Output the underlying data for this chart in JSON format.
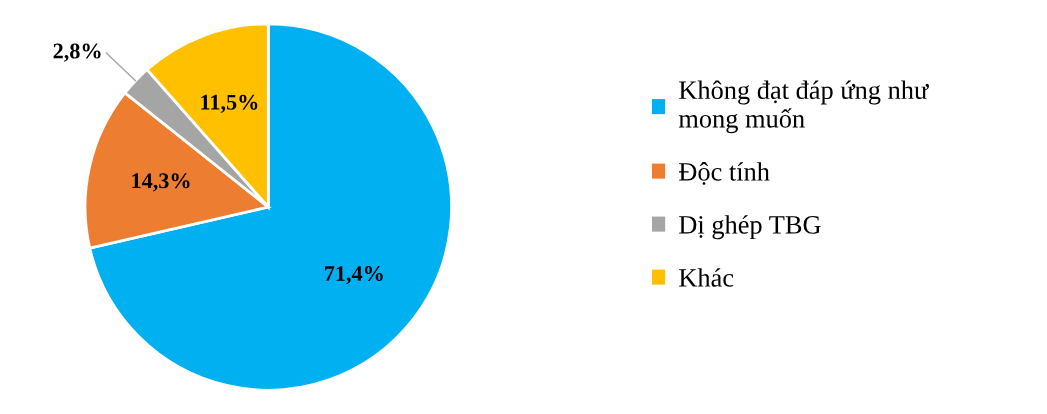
{
  "chart_data": {
    "type": "pie",
    "categories": [
      "Không đạt đáp ứng như\nmong muốn",
      "Độc tính",
      "Dị ghép TBG",
      "Khác"
    ],
    "values": [
      71.4,
      14.3,
      2.8,
      11.5
    ],
    "value_labels": [
      "71,4%",
      "14,3%",
      "2,8%",
      "11,5%"
    ],
    "colors": [
      "#00b0f0",
      "#ed7d31",
      "#a5a5a5",
      "#ffc000"
    ],
    "legend": "right"
  }
}
